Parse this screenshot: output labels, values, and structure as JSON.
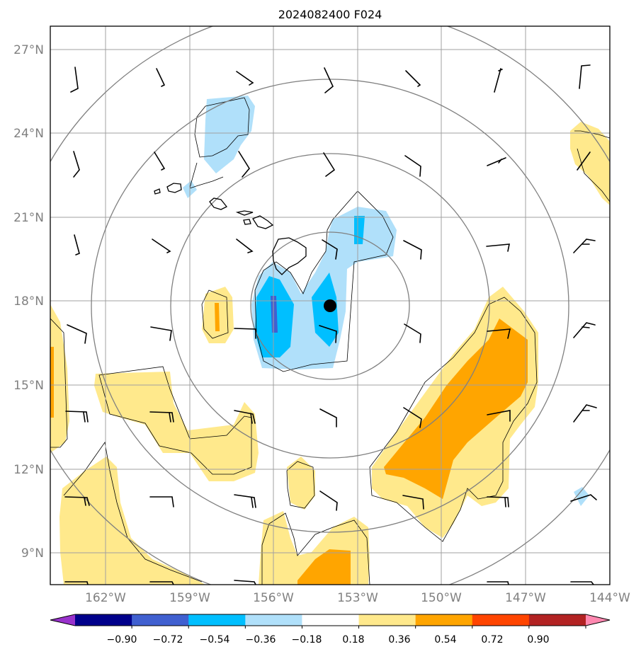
{
  "title": "2024082400 F024",
  "lat_labels": [
    "27°N",
    "24°N",
    "21°N",
    "18°N",
    "15°N",
    "12°N",
    "9°N"
  ],
  "lon_labels": [
    "162°W",
    "159°W",
    "156°W",
    "153°W",
    "150°W",
    "147°W",
    "144°W"
  ],
  "colorbar": {
    "ticks": [
      "−0.90",
      "−0.72",
      "−0.54",
      "−0.36",
      "−0.18",
      "0.18",
      "0.36",
      "0.54",
      "0.72",
      "0.90"
    ],
    "colors": [
      "#9932cc",
      "#00008b",
      "#4060d0",
      "#00bfff",
      "#b0e0fa",
      "#ffffff",
      "#ffe98c",
      "#ffa500",
      "#ff4500",
      "#b22222",
      "#ff88b0"
    ]
  },
  "colors": {
    "light_blue": "#b0e0fa",
    "blue": "#00bfff",
    "dark_blue": "#4060d0",
    "light_yellow": "#ffe98c",
    "orange": "#ffa500",
    "grid": "#a0a0a0",
    "range_ring": "#808080"
  },
  "storm_center": {
    "lat": 17.8,
    "lon": -153.9
  }
}
